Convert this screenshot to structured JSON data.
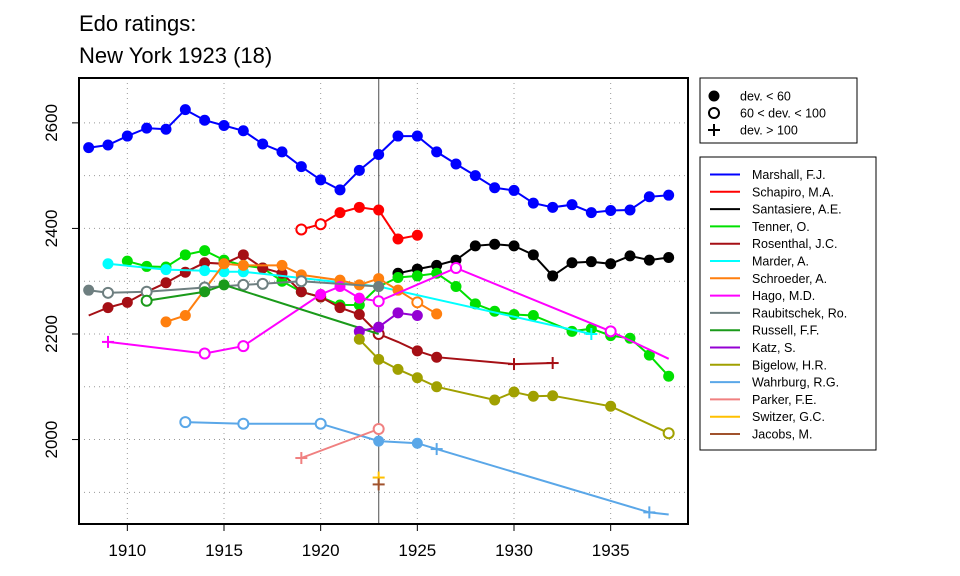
{
  "chart_data": {
    "type": "line",
    "title": [
      "Edo ratings:",
      "New York 1923 (18)"
    ],
    "xlabel": "",
    "ylabel": "",
    "xlim": [
      1907.5,
      1939
    ],
    "ylim": [
      1840,
      2685
    ],
    "xticks": [
      1910,
      1915,
      1920,
      1925,
      1930,
      1935
    ],
    "yticks": [
      2000,
      2200,
      2400,
      2600
    ],
    "vline": 1923,
    "grid": true,
    "marker_legend": [
      {
        "marker": "filled",
        "label": "dev. < 60"
      },
      {
        "marker": "open",
        "label": "60 < dev. < 100"
      },
      {
        "marker": "plus",
        "label": "dev. > 100"
      }
    ],
    "series": [
      {
        "name": "Marshall, F.J.",
        "color": "#0000ff",
        "points": [
          [
            1908,
            2553,
            "f"
          ],
          [
            1909,
            2558,
            "f"
          ],
          [
            1910,
            2575,
            "f"
          ],
          [
            1911,
            2590,
            "f"
          ],
          [
            1912,
            2588,
            "f"
          ],
          [
            1913,
            2625,
            "f"
          ],
          [
            1914,
            2605,
            "f"
          ],
          [
            1915,
            2595,
            "f"
          ],
          [
            1916,
            2585,
            "f"
          ],
          [
            1917,
            2560,
            "f"
          ],
          [
            1918,
            2545,
            "f"
          ],
          [
            1919,
            2517,
            "f"
          ],
          [
            1920,
            2492,
            "f"
          ],
          [
            1921,
            2473,
            "f"
          ],
          [
            1922,
            2510,
            "f"
          ],
          [
            1923,
            2540,
            "f"
          ],
          [
            1924,
            2575,
            "f"
          ],
          [
            1925,
            2575,
            "f"
          ],
          [
            1926,
            2545,
            "f"
          ],
          [
            1927,
            2522,
            "f"
          ],
          [
            1928,
            2500,
            "f"
          ],
          [
            1929,
            2477,
            "f"
          ],
          [
            1930,
            2472,
            "f"
          ],
          [
            1931,
            2448,
            "f"
          ],
          [
            1932,
            2440,
            "f"
          ],
          [
            1933,
            2445,
            "f"
          ],
          [
            1934,
            2430,
            "f"
          ],
          [
            1935,
            2434,
            "f"
          ],
          [
            1936,
            2435,
            "f"
          ],
          [
            1937,
            2460,
            "f"
          ],
          [
            1938,
            2463,
            "f"
          ]
        ]
      },
      {
        "name": "Schapiro, M.A.",
        "color": "#ff0000",
        "points": [
          [
            1919,
            2398,
            "o"
          ],
          [
            1920,
            2408,
            "o"
          ],
          [
            1921,
            2430,
            "f"
          ],
          [
            1922,
            2440,
            "f"
          ],
          [
            1923,
            2435,
            "f"
          ],
          [
            1924,
            2380,
            "f"
          ],
          [
            1925,
            2387,
            "f"
          ]
        ]
      },
      {
        "name": "Santasiere, A.E.",
        "color": "#000000",
        "points": [
          [
            1924,
            2315,
            "f"
          ],
          [
            1925,
            2323,
            "f"
          ],
          [
            1926,
            2330,
            "f"
          ],
          [
            1927,
            2340,
            "f"
          ],
          [
            1928,
            2367,
            "f"
          ],
          [
            1929,
            2370,
            "f"
          ],
          [
            1930,
            2367,
            "f"
          ],
          [
            1931,
            2350,
            "f"
          ],
          [
            1932,
            2310,
            "f"
          ],
          [
            1933,
            2335,
            "f"
          ],
          [
            1934,
            2337,
            "f"
          ],
          [
            1935,
            2333,
            "f"
          ],
          [
            1936,
            2348,
            "f"
          ],
          [
            1937,
            2340,
            "f"
          ],
          [
            1938,
            2345,
            "f"
          ]
        ]
      },
      {
        "name": "Tenner, O.",
        "color": "#00e000",
        "points": [
          [
            1910,
            2338,
            "f"
          ],
          [
            1911,
            2328,
            "f"
          ],
          [
            1912,
            2327,
            "f"
          ],
          [
            1913,
            2350,
            "f"
          ],
          [
            1914,
            2358,
            "f"
          ],
          [
            1915,
            2340,
            "f"
          ],
          [
            1916,
            2330,
            "f"
          ],
          [
            1917,
            2325,
            "f"
          ],
          [
            1918,
            2300,
            "f"
          ],
          [
            1919,
            2280,
            "f"
          ],
          [
            1920,
            2270,
            "f"
          ],
          [
            1921,
            2255,
            "f"
          ],
          [
            1922,
            2255,
            "f"
          ],
          [
            1923,
            2290,
            "f"
          ],
          [
            1924,
            2307,
            "f"
          ],
          [
            1925,
            2310,
            "f"
          ],
          [
            1926,
            2315,
            "f"
          ],
          [
            1927,
            2290,
            "f"
          ],
          [
            1928,
            2257,
            "f"
          ],
          [
            1929,
            2243,
            "f"
          ],
          [
            1930,
            2237,
            "f"
          ],
          [
            1931,
            2235,
            "f"
          ],
          [
            1933,
            2205,
            "f"
          ],
          [
            1934,
            2210,
            "f"
          ],
          [
            1935,
            2197,
            "f"
          ],
          [
            1936,
            2192,
            "f"
          ],
          [
            1937,
            2160,
            "f"
          ],
          [
            1938,
            2120,
            "f"
          ]
        ]
      },
      {
        "name": "Rosenthal, J.C.",
        "color": "#a50f15",
        "points": [
          [
            1908,
            2235,
            "n"
          ],
          [
            1909,
            2250,
            "f"
          ],
          [
            1910,
            2260,
            "f"
          ],
          [
            1911,
            2280,
            "f"
          ],
          [
            1912,
            2297,
            "f"
          ],
          [
            1913,
            2317,
            "f"
          ],
          [
            1914,
            2335,
            "f"
          ],
          [
            1915,
            2333,
            "f"
          ],
          [
            1916,
            2350,
            "f"
          ],
          [
            1917,
            2325,
            "f"
          ],
          [
            1918,
            2315,
            "f"
          ],
          [
            1919,
            2280,
            "f"
          ],
          [
            1920,
            2270,
            "f"
          ],
          [
            1921,
            2250,
            "f"
          ],
          [
            1922,
            2237,
            "f"
          ],
          [
            1923,
            2200,
            "o"
          ],
          [
            1924,
            2185,
            "n"
          ],
          [
            1925,
            2168,
            "f"
          ],
          [
            1926,
            2156,
            "f"
          ],
          [
            1930,
            2143,
            "p"
          ],
          [
            1932,
            2145,
            "p"
          ]
        ]
      },
      {
        "name": "Marder, A.",
        "color": "#00ffff",
        "points": [
          [
            1909,
            2333,
            "f"
          ],
          [
            1912,
            2322,
            "f"
          ],
          [
            1914,
            2320,
            "f"
          ],
          [
            1915,
            2318,
            "f"
          ],
          [
            1916,
            2318,
            "f"
          ],
          [
            1923,
            2290,
            "n"
          ],
          [
            1934,
            2200,
            "p"
          ]
        ]
      },
      {
        "name": "Schroeder, A.",
        "color": "#ff7f0e",
        "points": [
          [
            1912,
            2223,
            "f"
          ],
          [
            1913,
            2235,
            "f"
          ],
          [
            1915,
            2333,
            "f"
          ],
          [
            1916,
            2330,
            "f"
          ],
          [
            1918,
            2330,
            "f"
          ],
          [
            1919,
            2312,
            "f"
          ],
          [
            1921,
            2302,
            "f"
          ],
          [
            1922,
            2293,
            "f"
          ],
          [
            1923,
            2305,
            "f"
          ],
          [
            1924,
            2283,
            "f"
          ],
          [
            1925,
            2260,
            "o"
          ],
          [
            1926,
            2238,
            "f"
          ]
        ]
      },
      {
        "name": "Hago, M.D.",
        "color": "#ff00ff",
        "points": [
          [
            1909,
            2185,
            "p"
          ],
          [
            1914,
            2163,
            "o"
          ],
          [
            1916,
            2177,
            "o"
          ],
          [
            1920,
            2275,
            "f"
          ],
          [
            1921,
            2290,
            "f"
          ],
          [
            1922,
            2268,
            "f"
          ],
          [
            1923,
            2262,
            "o"
          ],
          [
            1927,
            2325,
            "o"
          ],
          [
            1935,
            2205,
            "o"
          ],
          [
            1938,
            2153,
            "n"
          ]
        ]
      },
      {
        "name": "Raubitschek, Ro.",
        "color": "#6e7f80",
        "points": [
          [
            1908,
            2283,
            "f"
          ],
          [
            1909,
            2278,
            "o"
          ],
          [
            1911,
            2280,
            "o"
          ],
          [
            1914,
            2288,
            "o"
          ],
          [
            1916,
            2293,
            "o"
          ],
          [
            1917,
            2295,
            "o"
          ],
          [
            1919,
            2300,
            "o"
          ],
          [
            1923,
            2290,
            "f"
          ]
        ]
      },
      {
        "name": "Russell, F.F.",
        "color": "#1a9a1a",
        "points": [
          [
            1911,
            2263,
            "o"
          ],
          [
            1914,
            2280,
            "f"
          ],
          [
            1915,
            2293,
            "f"
          ],
          [
            1923,
            2200,
            "n"
          ]
        ]
      },
      {
        "name": "Katz, S.",
        "color": "#9400d3",
        "points": [
          [
            1922,
            2205,
            "f"
          ],
          [
            1923,
            2213,
            "f"
          ],
          [
            1924,
            2240,
            "f"
          ],
          [
            1925,
            2235,
            "f"
          ]
        ]
      },
      {
        "name": "Bigelow, H.R.",
        "color": "#a0a000",
        "points": [
          [
            1922,
            2190,
            "f"
          ],
          [
            1923,
            2152,
            "f"
          ],
          [
            1924,
            2133,
            "f"
          ],
          [
            1925,
            2117,
            "f"
          ],
          [
            1926,
            2100,
            "f"
          ],
          [
            1929,
            2075,
            "f"
          ],
          [
            1930,
            2090,
            "f"
          ],
          [
            1931,
            2082,
            "f"
          ],
          [
            1932,
            2083,
            "f"
          ],
          [
            1935,
            2063,
            "f"
          ],
          [
            1938,
            2012,
            "o"
          ]
        ]
      },
      {
        "name": "Wahrburg, R.G.",
        "color": "#5aa7e8",
        "points": [
          [
            1913,
            2033,
            "o"
          ],
          [
            1916,
            2030,
            "o"
          ],
          [
            1920,
            2030,
            "o"
          ],
          [
            1923,
            1997,
            "f"
          ],
          [
            1925,
            1993,
            "f"
          ],
          [
            1926,
            1982,
            "p"
          ],
          [
            1937,
            1862,
            "p"
          ],
          [
            1938,
            1858,
            "n"
          ]
        ]
      },
      {
        "name": "Parker, F.E.",
        "color": "#f08080",
        "points": [
          [
            1919,
            1965,
            "p"
          ],
          [
            1923,
            2020,
            "o"
          ]
        ]
      },
      {
        "name": "Switzer, G.C.",
        "color": "#ffc000",
        "points": [
          [
            1923,
            1928,
            "p"
          ]
        ]
      },
      {
        "name": "Jacobs, M.",
        "color": "#a0522d",
        "points": [
          [
            1923,
            1915,
            "p"
          ]
        ]
      }
    ]
  }
}
